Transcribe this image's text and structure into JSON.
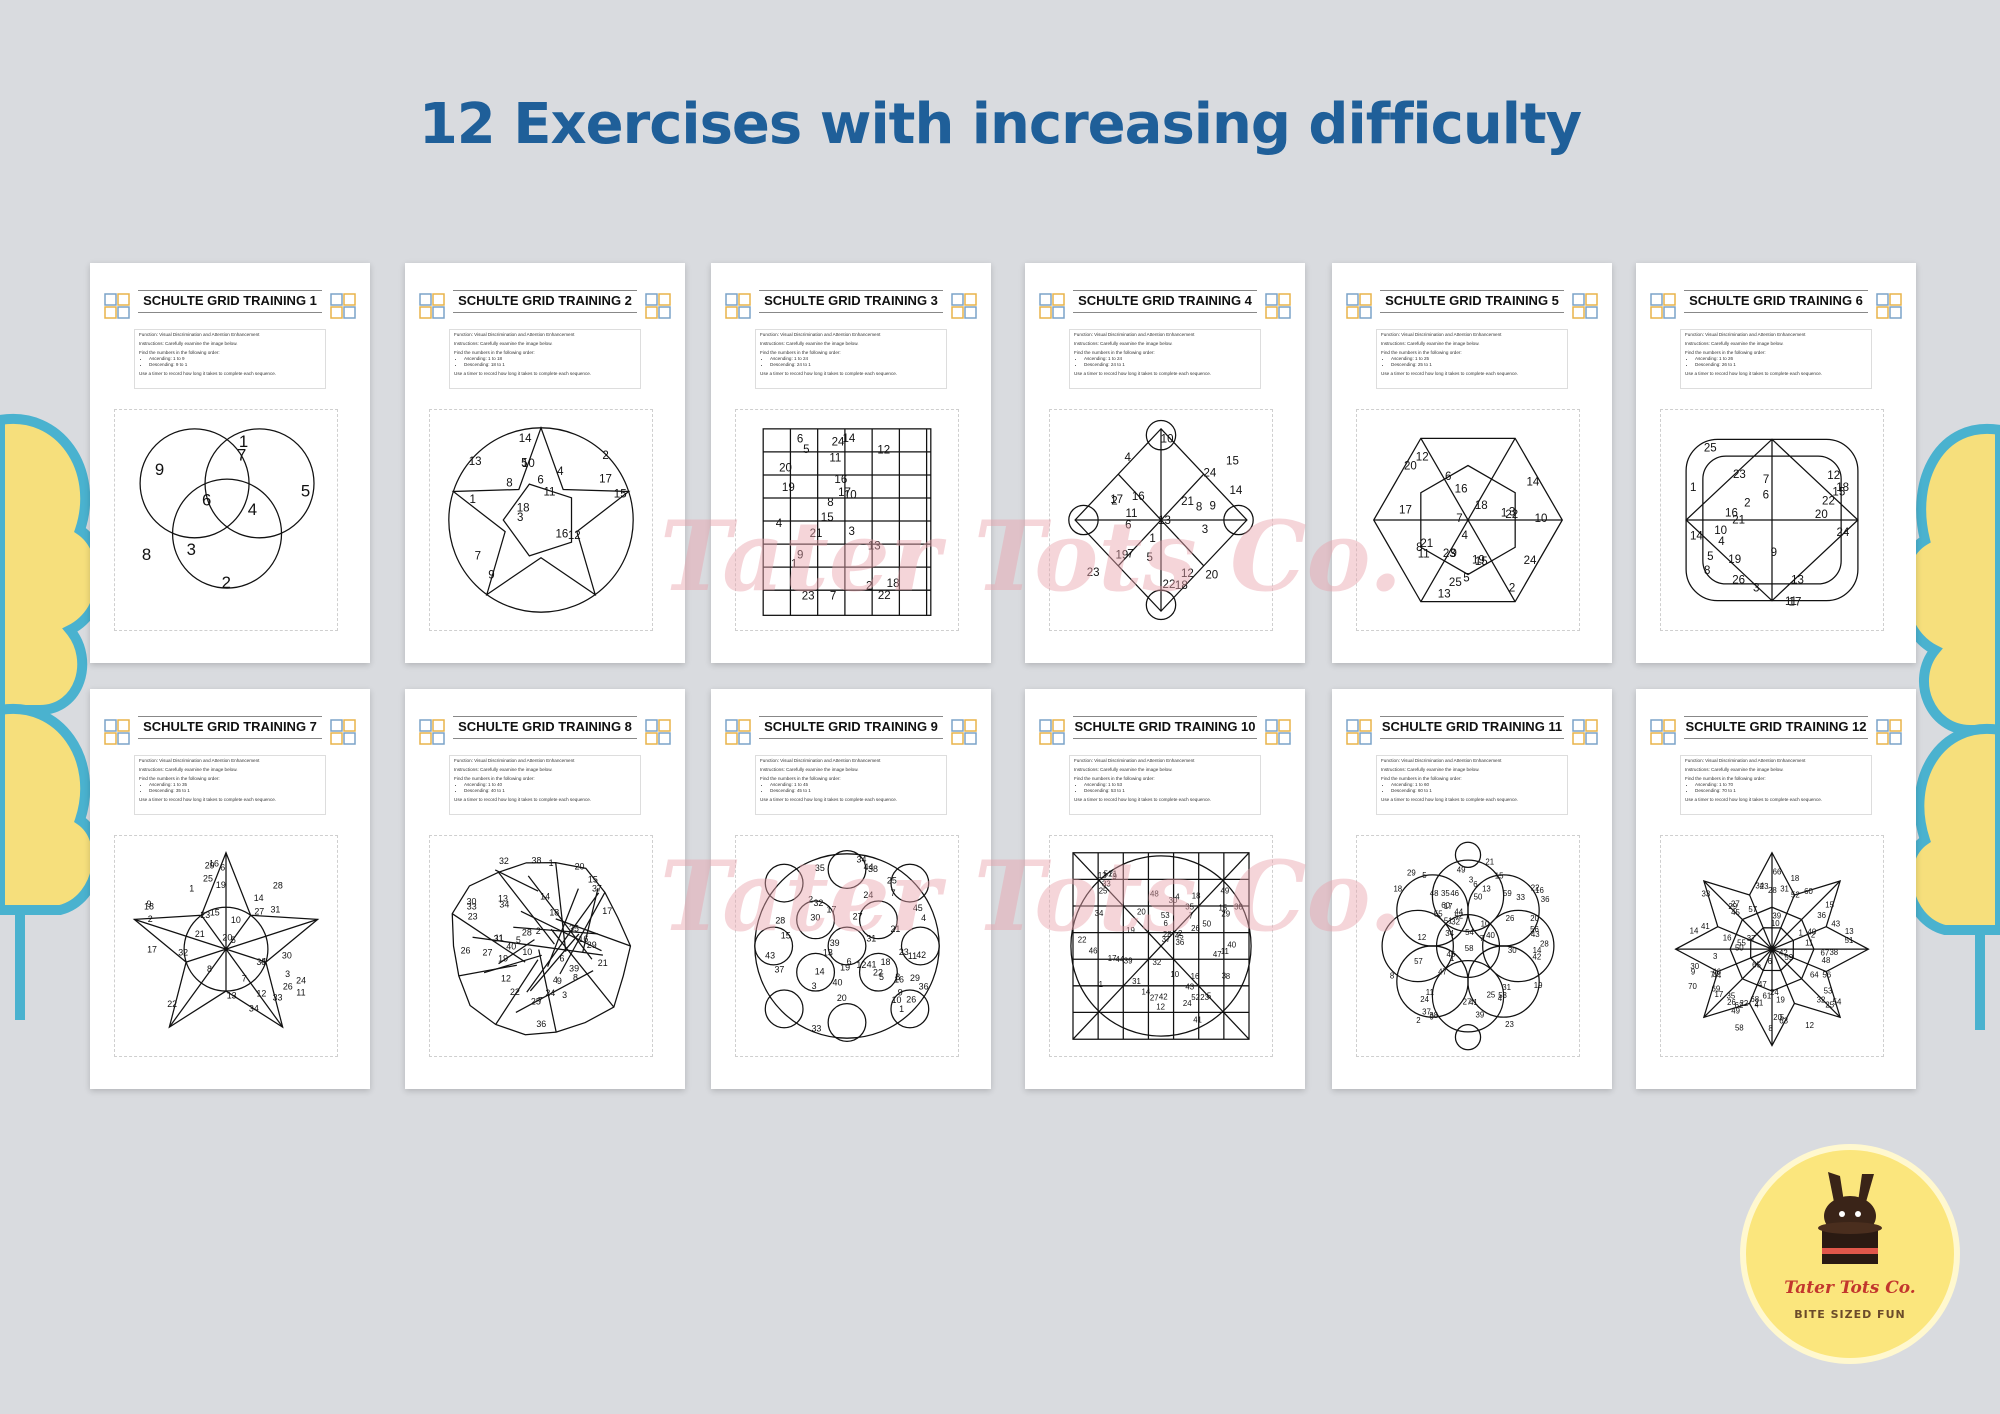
{
  "headline": "12 Exercises with increasing difficulty",
  "colors": {
    "background": "#d9dbdf",
    "headline": "#1f5f99",
    "cloud_yellow": "#f6df7c",
    "cloud_outline": "#4ab2cf",
    "watermark": "#e9a3ad",
    "logo_bg": "#fbe67d"
  },
  "worksheet": {
    "function_text": "Function: Visual Discrimination and Attention Enhancement",
    "instructions_text": "Instructions: Carefully examine the image below.",
    "find_text": "Find the numbers in the following order:",
    "timer_text": "Use a timer to record how long it takes to complete each sequence."
  },
  "sheets": [
    {
      "title": "SCHULTE GRID TRAINING 1",
      "ascending": "Ascending: 1 to 9",
      "descending": "Descending: 9 to 1",
      "shape": "venn",
      "max": 9
    },
    {
      "title": "SCHULTE GRID TRAINING 2",
      "ascending": "Ascending: 1 to 18",
      "descending": "Descending: 18 to 1",
      "shape": "star",
      "max": 18
    },
    {
      "title": "SCHULTE GRID TRAINING 3",
      "ascending": "Ascending: 1 to 24",
      "descending": "Descending: 24 to 1",
      "shape": "grid",
      "max": 24
    },
    {
      "title": "SCHULTE GRID TRAINING 4",
      "ascending": "Ascending: 1 to 24",
      "descending": "Descending: 24 to 1",
      "shape": "diamond",
      "max": 24
    },
    {
      "title": "SCHULTE GRID TRAINING 5",
      "ascending": "Ascending: 1 to 25",
      "descending": "Descending: 25 to 1",
      "shape": "hexagon",
      "max": 25
    },
    {
      "title": "SCHULTE GRID TRAINING 6",
      "ascending": "Ascending: 1 to 26",
      "descending": "Descending: 26 to 1",
      "shape": "roundrect",
      "max": 26
    },
    {
      "title": "SCHULTE GRID TRAINING 7",
      "ascending": "Ascending: 1 to 35",
      "descending": "Descending: 35 to 1",
      "shape": "bigstar",
      "max": 35
    },
    {
      "title": "SCHULTE GRID TRAINING 8",
      "ascending": "Ascending: 1 to 40",
      "descending": "Descending: 40 to 1",
      "shape": "poly",
      "max": 40
    },
    {
      "title": "SCHULTE GRID TRAINING 9",
      "ascending": "Ascending: 1 to 45",
      "descending": "Descending: 45 to 1",
      "shape": "circles",
      "max": 45
    },
    {
      "title": "SCHULTE GRID TRAINING 10",
      "ascending": "Ascending: 1 to 53",
      "descending": "Descending: 53 to 1",
      "shape": "square",
      "max": 53
    },
    {
      "title": "SCHULTE GRID TRAINING 11",
      "ascending": "Ascending: 1 to 60",
      "descending": "Descending: 60 to 1",
      "shape": "flower",
      "max": 60
    },
    {
      "title": "SCHULTE GRID TRAINING 12",
      "ascending": "Ascending: 1 to 70",
      "descending": "Descending: 70 to 1",
      "shape": "starpoly",
      "max": 70
    }
  ],
  "watermark": "Tater Tots Co.",
  "logo": {
    "name": "Tater Tots Co.",
    "tagline": "BITE SIZED FUN"
  }
}
